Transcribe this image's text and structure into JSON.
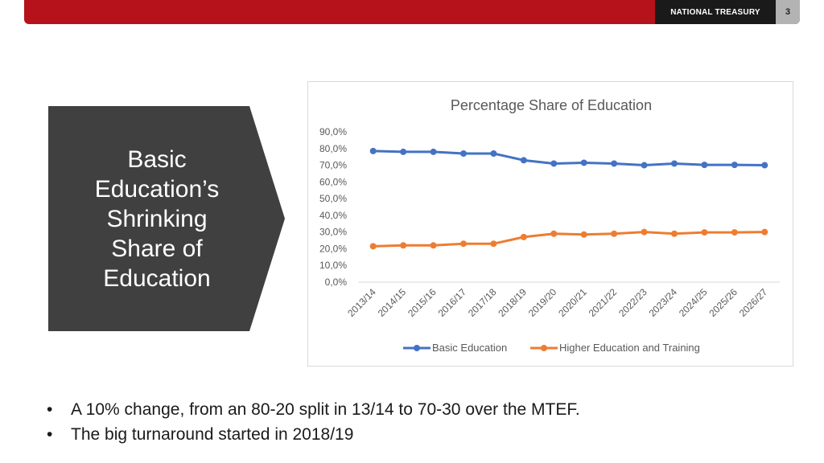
{
  "header": {
    "brand": "NATIONAL TREASURY",
    "page_number": "3"
  },
  "colors": {
    "accent_red": "#b5121b",
    "chevron": "#404040",
    "basic": "#4472c4",
    "higher": "#ed7d31"
  },
  "sidebar": {
    "title": "Basic\nEducation’s\nShrinking\nShare of\nEducation"
  },
  "chart_data": {
    "type": "line",
    "title": "Percentage Share of Education",
    "xlabel": "",
    "ylabel": "",
    "categories": [
      "2013/14",
      "2014/15",
      "2015/16",
      "2016/17",
      "2017/18",
      "2018/19",
      "2019/20",
      "2020/21",
      "2021/22",
      "2022/23",
      "2023/24",
      "2024/25",
      "2025/26",
      "2026/27"
    ],
    "ylim": [
      0,
      90
    ],
    "yticks": [
      "0,0%",
      "10,0%",
      "20,0%",
      "30,0%",
      "40,0%",
      "50,0%",
      "60,0%",
      "70,0%",
      "80,0%",
      "90,0%"
    ],
    "series": [
      {
        "name": "Basic Education",
        "color": "#4472c4",
        "values": [
          78.5,
          78,
          78,
          77,
          77,
          73,
          71,
          71.5,
          71,
          70,
          71,
          70.2,
          70.2,
          70
        ]
      },
      {
        "name": "Higher Education and Training",
        "color": "#ed7d31",
        "values": [
          21.5,
          22,
          22,
          23,
          23,
          27,
          29,
          28.5,
          29,
          30,
          29,
          29.8,
          29.8,
          30
        ]
      }
    ],
    "grid": false,
    "legend": "bottom"
  },
  "bullets": [
    "A 10% change, from an 80-20 split in 13/14 to 70-30 over the MTEF.",
    "The big turnaround started in 2018/19"
  ]
}
